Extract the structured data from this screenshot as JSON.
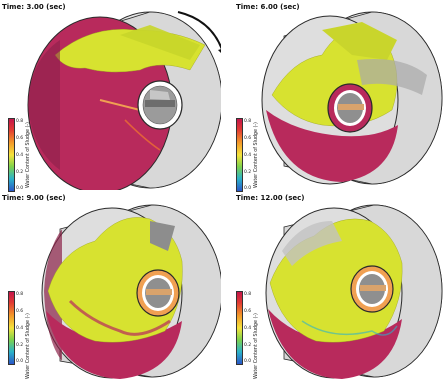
{
  "panels": [
    {
      "time_label": "Time: 3.00 (sec)"
    },
    {
      "time_label": "Time: 6.00 (sec)"
    },
    {
      "time_label": "Time: 9.00 (sec)"
    },
    {
      "time_label": "Time: 12.00 (sec)"
    }
  ],
  "colorbar": {
    "title": "Water Content of Sludge (-)",
    "ticks": [
      "0.8",
      "0.6",
      "0.4",
      "0.2",
      "0.0"
    ]
  },
  "colors": {
    "sludge": "#b82a5c",
    "deposit": "#d7e230",
    "drum_shell": "#dadada",
    "drum_edge": "#2a2a2a"
  },
  "icons": [
    "rotation-arrow-icon"
  ]
}
